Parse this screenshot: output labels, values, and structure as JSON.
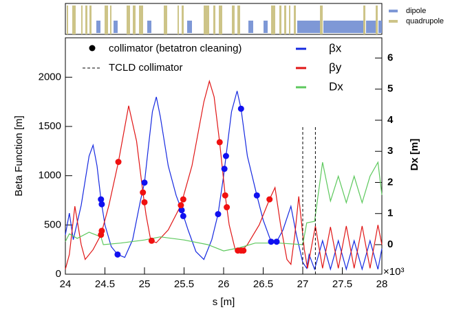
{
  "chart_data": {
    "type": "line",
    "xlabel": "s [m]",
    "ylabel": "Beta Function [m]",
    "y2label": "Dx [m]",
    "x_multiplier": "×10³",
    "xlim": [
      24,
      28
    ],
    "xticks": [
      24,
      24.5,
      25,
      25.5,
      26,
      26.5,
      27,
      27.5,
      28
    ],
    "ylim": [
      0,
      2400
    ],
    "yticks": [
      0,
      500,
      1000,
      1500,
      2000
    ],
    "y2lim": [
      -0.95,
      6.65
    ],
    "y2ticks": [
      0,
      1,
      2,
      3,
      4,
      5,
      6
    ],
    "series": [
      {
        "name": "βx",
        "color": "#1428e0",
        "x": [
          24.0,
          24.05,
          24.1,
          24.2,
          24.3,
          24.35,
          24.4,
          24.45,
          24.5,
          24.58,
          24.66,
          24.75,
          24.85,
          24.95,
          25.0,
          25.05,
          25.1,
          25.15,
          25.2,
          25.3,
          25.4,
          25.47,
          25.55,
          25.65,
          25.75,
          25.85,
          25.93,
          26.0,
          26.03,
          26.1,
          26.17,
          26.22,
          26.3,
          26.42,
          26.5,
          26.6,
          26.67,
          26.75,
          26.85,
          26.92,
          27.0,
          27.05,
          27.08,
          27.15,
          27.25,
          27.35,
          27.45,
          27.55,
          27.65,
          27.75,
          27.85,
          27.95,
          28.0
        ],
        "values": [
          400,
          620,
          350,
          700,
          1200,
          1310,
          1100,
          760,
          500,
          280,
          200,
          170,
          350,
          750,
          930,
          1300,
          1650,
          1800,
          1600,
          1100,
          800,
          650,
          450,
          230,
          150,
          350,
          610,
          1000,
          1200,
          1650,
          1860,
          1680,
          1200,
          800,
          550,
          330,
          330,
          450,
          690,
          400,
          120,
          60,
          200,
          50,
          340,
          50,
          340,
          50,
          340,
          50,
          340,
          50,
          260
        ]
      },
      {
        "name": "βy",
        "color": "#e01414",
        "x": [
          24.0,
          24.05,
          24.12,
          24.2,
          24.25,
          24.35,
          24.45,
          24.55,
          24.67,
          24.8,
          24.9,
          24.98,
          25.02,
          25.08,
          25.15,
          25.3,
          25.46,
          25.6,
          25.75,
          25.82,
          25.88,
          25.95,
          26.02,
          26.07,
          26.15,
          26.22,
          26.3,
          26.45,
          26.58,
          26.65,
          26.72,
          26.8,
          26.85,
          26.9,
          26.95,
          27.02,
          27.06,
          27.16,
          27.25,
          27.35,
          27.45,
          27.55,
          27.65,
          27.75,
          27.85,
          27.95,
          28.0
        ],
        "values": [
          50,
          200,
          690,
          300,
          150,
          250,
          400,
          700,
          1140,
          1710,
          1350,
          830,
          600,
          340,
          320,
          450,
          700,
          1100,
          1750,
          1960,
          1800,
          1340,
          800,
          500,
          240,
          230,
          300,
          500,
          760,
          880,
          500,
          150,
          100,
          400,
          790,
          250,
          60,
          490,
          60,
          480,
          60,
          490,
          60,
          490,
          60,
          500,
          300
        ]
      },
      {
        "name": "Dx",
        "color": "#5cc85c",
        "axis": "y2",
        "x": [
          24.0,
          24.05,
          24.15,
          24.3,
          24.45,
          24.48,
          24.7,
          25.0,
          25.2,
          25.5,
          25.8,
          26.0,
          26.2,
          26.4,
          26.7,
          27.0,
          27.05,
          27.15,
          27.25,
          27.35,
          27.45,
          27.55,
          27.65,
          27.75,
          27.85,
          27.95,
          28.0
        ],
        "values": [
          0.1,
          0.35,
          0.2,
          0.4,
          0.25,
          0.0,
          0.05,
          0.15,
          0.25,
          0.15,
          0.0,
          -0.2,
          -0.1,
          0.05,
          0.05,
          0.0,
          0.7,
          0.75,
          2.65,
          1.4,
          2.2,
          1.35,
          2.2,
          1.35,
          2.2,
          2.65,
          1.6
        ]
      }
    ],
    "collimators": {
      "name": "collimator (betatron cleaning)",
      "series": [
        {
          "color": "#1010f0",
          "x": [
            24.45,
            24.46,
            24.66,
            25.0,
            25.47,
            25.49,
            25.93,
            26.01,
            26.03,
            26.22,
            26.42,
            26.6,
            26.67
          ],
          "values": [
            760,
            710,
            200,
            930,
            650,
            590,
            610,
            1070,
            1200,
            1680,
            800,
            330,
            330
          ]
        },
        {
          "color": "#f01010",
          "x": [
            24.45,
            24.46,
            24.67,
            24.98,
            25.0,
            25.09,
            25.46,
            25.49,
            25.95,
            26.02,
            26.04,
            26.18,
            26.22,
            26.25,
            26.58
          ],
          "values": [
            400,
            440,
            1140,
            830,
            730,
            340,
            700,
            760,
            1340,
            800,
            680,
            240,
            240,
            240,
            760
          ]
        }
      ]
    },
    "tcld": {
      "name": "TCLD collimator",
      "x": [
        27.0,
        27.16
      ]
    },
    "magnet_legend": [
      "dipole",
      "quadrupole"
    ]
  }
}
